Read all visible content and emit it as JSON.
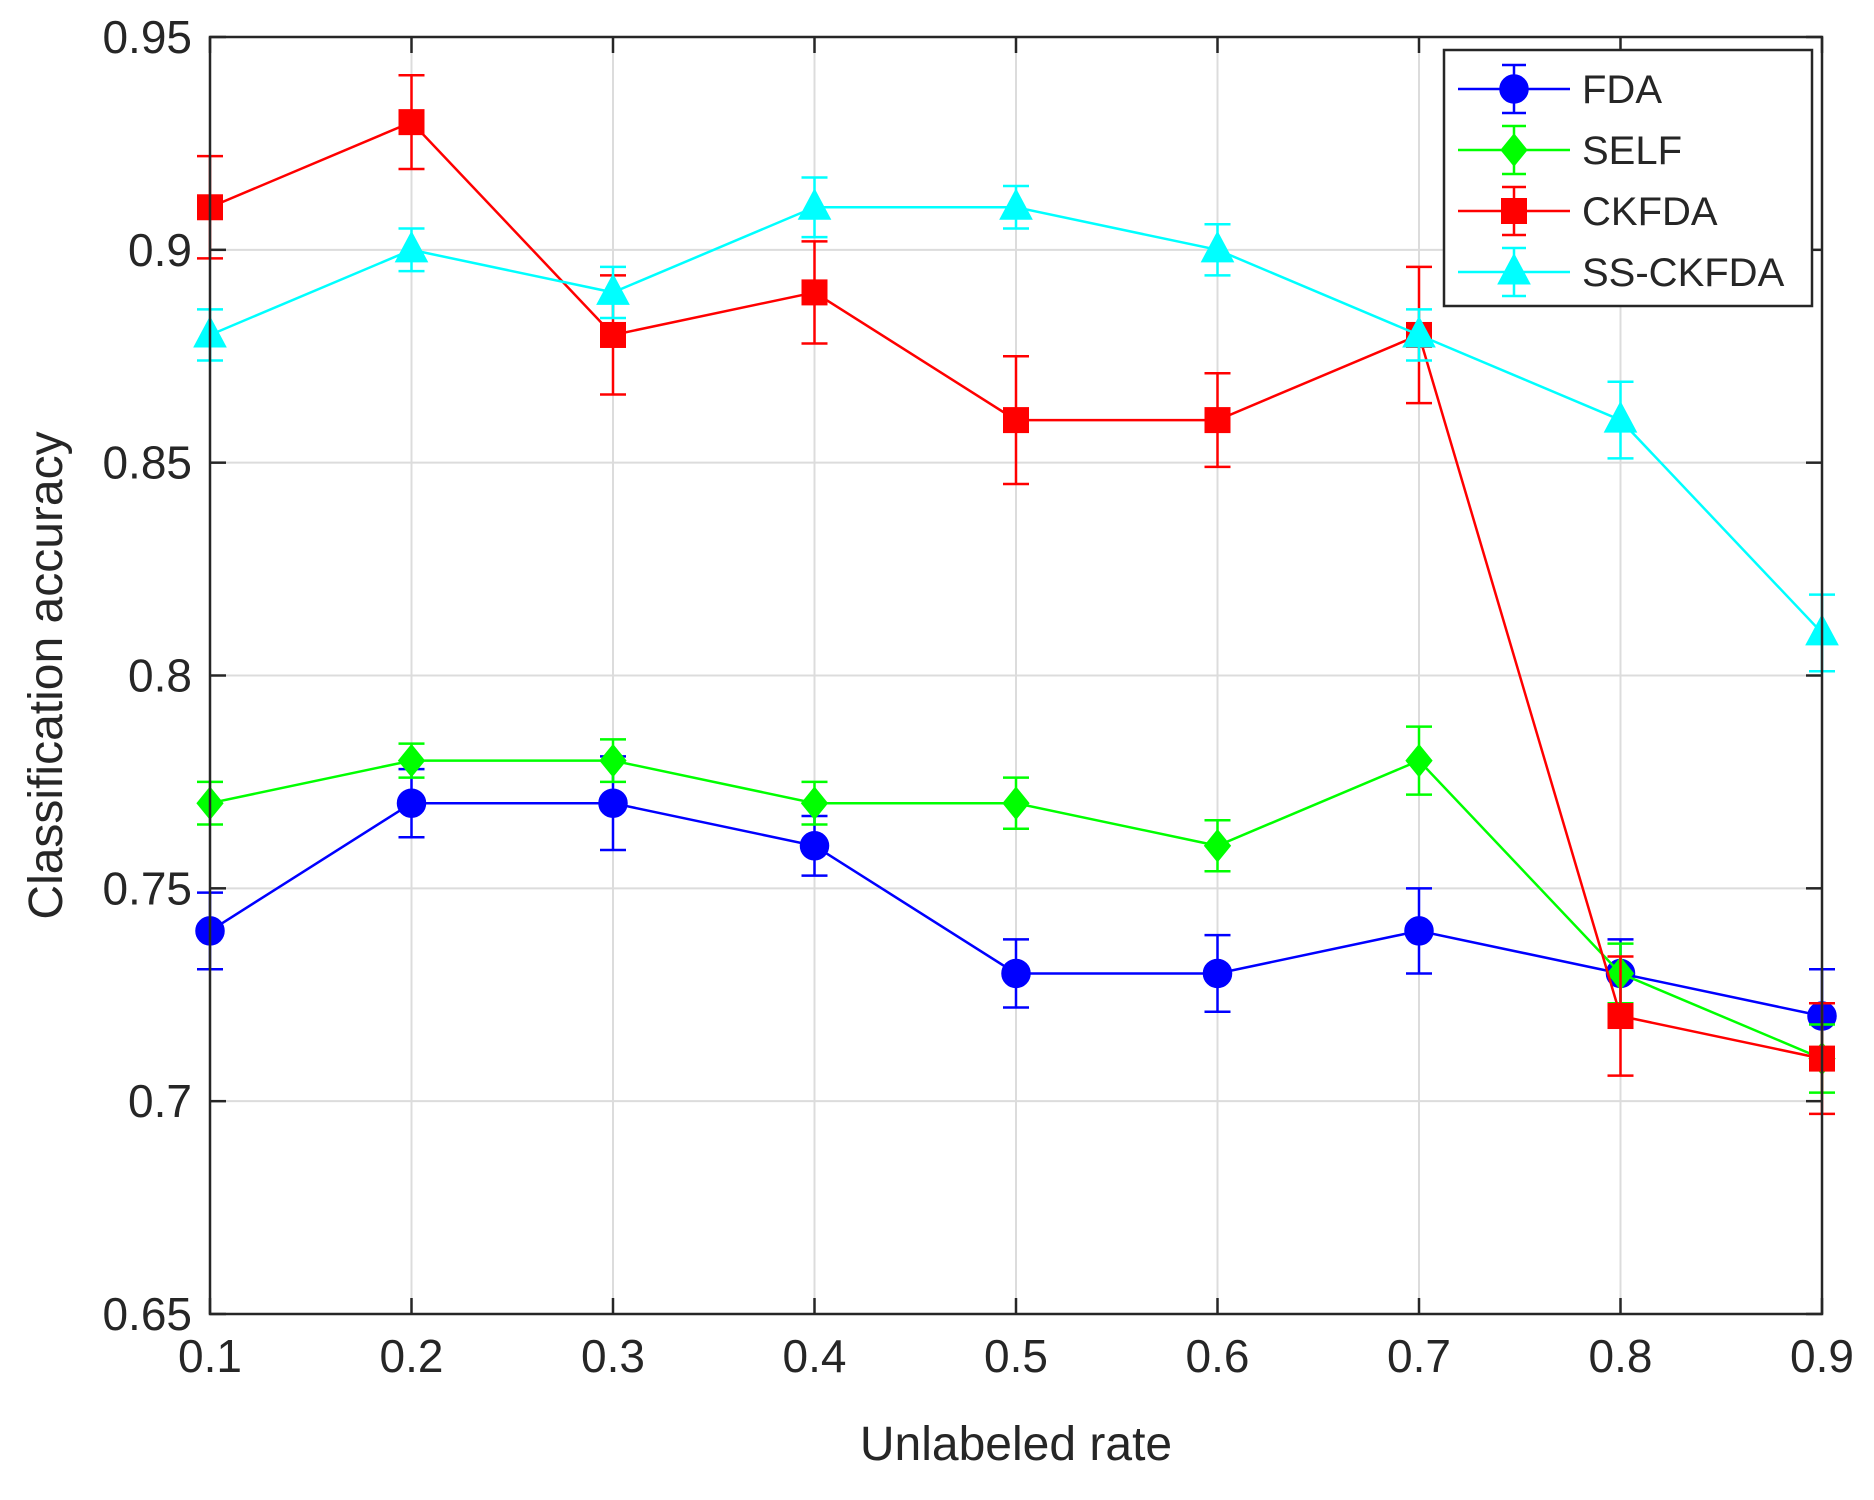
{
  "chart_data": {
    "type": "line",
    "xlabel": "Unlabeled rate",
    "ylabel": "Classification accuracy",
    "xlim": [
      0.1,
      0.9
    ],
    "ylim": [
      0.65,
      0.95
    ],
    "x_ticks": [
      "0.1",
      "0.2",
      "0.3",
      "0.4",
      "0.5",
      "0.6",
      "0.7",
      "0.8",
      "0.9"
    ],
    "y_ticks": [
      "0.65",
      "0.7",
      "0.75",
      "0.8",
      "0.85",
      "0.9",
      "0.95"
    ],
    "grid": true,
    "legend_position": "top-right",
    "x": [
      0.1,
      0.2,
      0.3,
      0.4,
      0.5,
      0.6,
      0.7,
      0.8,
      0.9
    ],
    "series": [
      {
        "name": "FDA",
        "color": "#0000ff",
        "marker": "circle",
        "values": [
          0.74,
          0.77,
          0.77,
          0.76,
          0.73,
          0.73,
          0.74,
          0.73,
          0.72
        ],
        "errors": [
          0.009,
          0.008,
          0.011,
          0.007,
          0.008,
          0.009,
          0.01,
          0.008,
          0.011
        ]
      },
      {
        "name": "SELF",
        "color": "#00ff00",
        "marker": "diamond",
        "values": [
          0.77,
          0.78,
          0.78,
          0.77,
          0.77,
          0.76,
          0.78,
          0.73,
          0.71
        ],
        "errors": [
          0.005,
          0.004,
          0.005,
          0.005,
          0.006,
          0.006,
          0.008,
          0.007,
          0.008
        ]
      },
      {
        "name": "CKFDA",
        "color": "#ff0000",
        "marker": "square",
        "values": [
          0.91,
          0.93,
          0.88,
          0.89,
          0.86,
          0.86,
          0.88,
          0.72,
          0.71
        ],
        "errors": [
          0.012,
          0.011,
          0.014,
          0.012,
          0.015,
          0.011,
          0.016,
          0.014,
          0.013
        ]
      },
      {
        "name": "SS-CKFDA",
        "color": "#00ffff",
        "marker": "triangle",
        "values": [
          0.88,
          0.9,
          0.89,
          0.91,
          0.91,
          0.9,
          0.88,
          0.86,
          0.81
        ],
        "errors": [
          0.006,
          0.005,
          0.006,
          0.007,
          0.005,
          0.006,
          0.006,
          0.009,
          0.009
        ]
      }
    ]
  }
}
